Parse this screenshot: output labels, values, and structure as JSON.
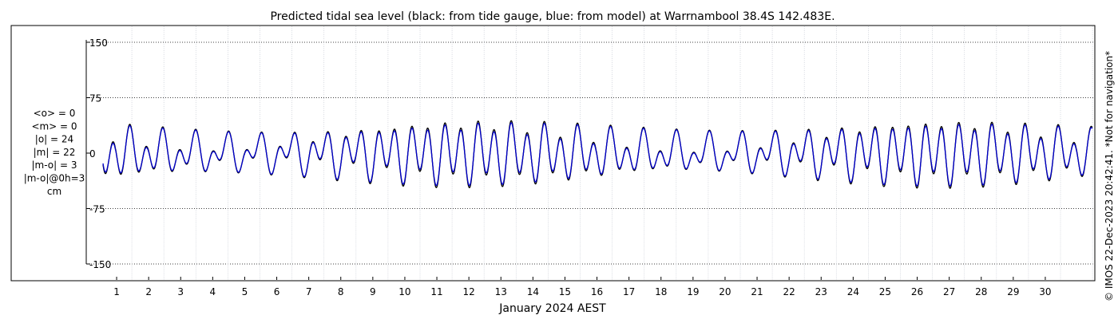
{
  "chart_data": {
    "type": "line",
    "title": "Predicted tidal sea level (black: from tide gauge, blue: from model) at Warrnambool 38.4S 142.483E.",
    "xlabel": "January 2024 AEST",
    "ylabel": "",
    "x_range_days": [
      0,
      31
    ],
    "ylim": [
      -155,
      155
    ],
    "y_ticks": [
      150,
      75,
      0,
      -75,
      -150
    ],
    "y_tick_labels": [
      "150",
      "75",
      "0",
      "-75",
      "-150"
    ],
    "x_ticks": [
      1,
      2,
      3,
      4,
      5,
      6,
      7,
      8,
      9,
      10,
      11,
      12,
      13,
      14,
      15,
      16,
      17,
      18,
      19,
      20,
      21,
      22,
      23,
      24,
      25,
      26,
      27,
      28,
      29,
      30
    ],
    "grid": true,
    "series": [
      {
        "name": "from tide gauge",
        "color": "#000000",
        "model": {
          "mean": 0,
          "amp_diurnal_base": 10,
          "amp_diurnal_mod": 6,
          "amp_semidiurnal_base": 16,
          "amp_semidiurnal_mod": 22,
          "spring_neap_period_days": 14.76,
          "spring_phase_days": 11.7,
          "start_day": 0.1,
          "end_day": 31
        }
      },
      {
        "name": "from model",
        "color": "#0000cc",
        "model": {
          "mean": 0,
          "amp_diurnal_base": 10,
          "amp_diurnal_mod": 6,
          "amp_semidiurnal_base": 15,
          "amp_semidiurnal_mod": 20,
          "spring_neap_period_days": 14.76,
          "spring_phase_days": 11.7,
          "start_day": 0.1,
          "end_day": 31
        }
      }
    ],
    "annotations": [
      "<o> = 0",
      "<m> = 0",
      "|o| = 24",
      "|m| = 22",
      "|m-o| = 3",
      "|m-o|@0h=3",
      "cm"
    ]
  },
  "credit": "© IMOS 22-Dec-2023 20:42:41. *Not for navigation*"
}
